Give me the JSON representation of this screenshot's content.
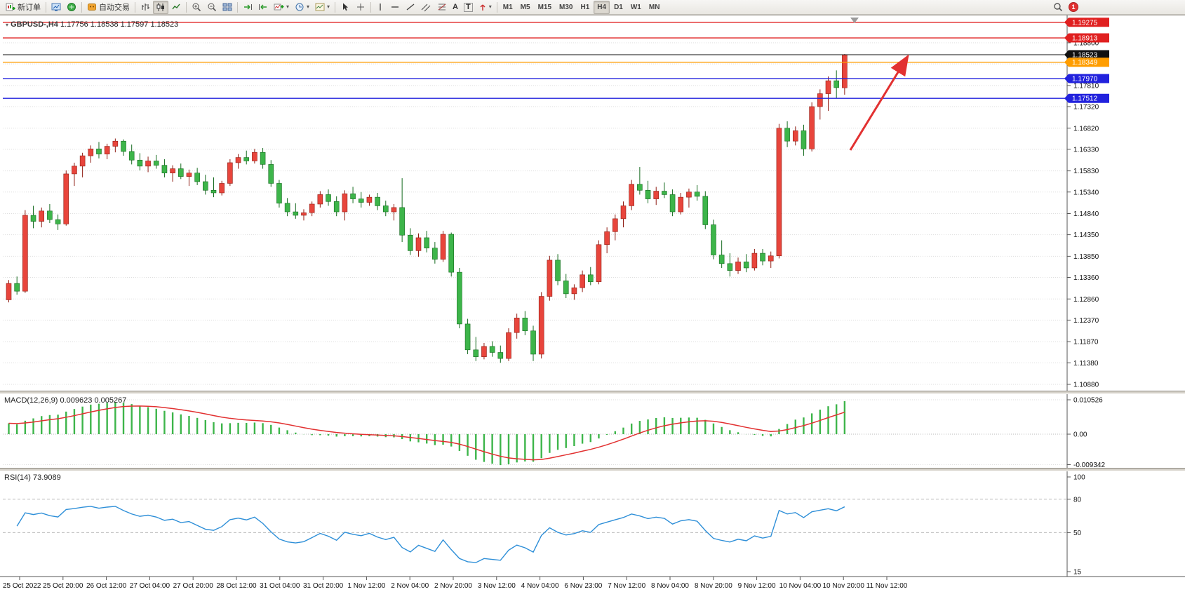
{
  "toolbar": {
    "new_order": "新订单",
    "autotrade": "自动交易",
    "timeframes": [
      "M1",
      "M5",
      "M15",
      "M30",
      "H1",
      "H4",
      "D1",
      "W1",
      "MN"
    ],
    "active_timeframe": "H4",
    "notification_count": "1"
  },
  "icons": {
    "caret_down": "▾",
    "text_tool": "A",
    "label_tool": "T"
  },
  "chart_header": {
    "symbol": "GBPUSD-,H4",
    "ohlc": "1.17756 1.18538 1.17597 1.18523"
  },
  "macd_header": {
    "name": "MACD(12,26,9)",
    "value_main": "0.009623",
    "value_signal": "0.005267"
  },
  "rsi_header": {
    "name": "RSI(14)",
    "value": "73.9089"
  },
  "chart_data": {
    "type": "candlestick",
    "symbol": "GBPUSD",
    "timeframe": "H4",
    "current_ohlc": {
      "open": 1.17756,
      "high": 1.18538,
      "low": 1.17597,
      "close": 1.18523
    },
    "colors": {
      "up": "#e8453c",
      "down": "#3db54a",
      "macd_hist": "#3db54a",
      "macd_signal": "#e23131",
      "rsi_line": "#2e8fd8"
    },
    "price_axis_ticks": [
      "1.18800",
      "1.18310",
      "1.17810",
      "1.17320",
      "1.16820",
      "1.16330",
      "1.15830",
      "1.15340",
      "1.14840",
      "1.14350",
      "1.13850",
      "1.13360",
      "1.12860",
      "1.12370",
      "1.11870",
      "1.11380",
      "1.10880"
    ],
    "time_axis_labels": [
      "25 Oct 2022",
      "25 Oct 20:00",
      "26 Oct 12:00",
      "27 Oct 04:00",
      "27 Oct 20:00",
      "28 Oct 12:00",
      "31 Oct 04:00",
      "31 Oct 20:00",
      "1 Nov 12:00",
      "2 Nov 04:00",
      "2 Nov 20:00",
      "3 Nov 12:00",
      "4 Nov 04:00",
      "6 Nov 23:00",
      "7 Nov 12:00",
      "8 Nov 04:00",
      "8 Nov 20:00",
      "9 Nov 12:00",
      "10 Nov 04:00",
      "10 Nov 20:00",
      "11 Nov 12:00"
    ],
    "hlines": [
      {
        "price": 1.19275,
        "color": "#e02020",
        "label": "1.19275",
        "type": "resistance"
      },
      {
        "price": 1.18913,
        "color": "#e02020",
        "label": "1.18913",
        "type": "resistance"
      },
      {
        "price": 1.18523,
        "color": "#111111",
        "label": "1.18523",
        "type": "current-price"
      },
      {
        "price": 1.18349,
        "color": "#ff9d00",
        "label": "1.18349",
        "type": "level"
      },
      {
        "price": 1.1797,
        "color": "#2222dd",
        "label": "1.17970",
        "type": "support"
      },
      {
        "price": 1.17512,
        "color": "#2222dd",
        "label": "1.17512",
        "type": "support"
      }
    ],
    "arrow_annotation": {
      "color": "#e23131"
    },
    "macd": {
      "name": "MACD(12,26,9)",
      "params": [
        12,
        26,
        9
      ],
      "value_main": 0.009623,
      "value_signal": 0.005267,
      "axis_labels": [
        "0.010526",
        "0.00",
        "-0.009342"
      ],
      "axis_values": [
        0.010526,
        0,
        -0.009342
      ]
    },
    "rsi": {
      "name": "RSI(14)",
      "period": 14,
      "value": 73.9089,
      "axis_labels": [
        "100",
        "80",
        "50",
        "15"
      ],
      "levels": [
        80,
        50
      ]
    },
    "candles": [
      [
        1.1284,
        1.133,
        1.1278,
        1.1322
      ],
      [
        1.1322,
        1.1338,
        1.1296,
        1.1304
      ],
      [
        1.1304,
        1.1492,
        1.13,
        1.148
      ],
      [
        1.148,
        1.1502,
        1.145,
        1.1466
      ],
      [
        1.1466,
        1.1498,
        1.1452,
        1.149
      ],
      [
        1.149,
        1.1506,
        1.1462,
        1.147
      ],
      [
        1.147,
        1.1482,
        1.1446,
        1.146
      ],
      [
        1.146,
        1.1584,
        1.1456,
        1.1576
      ],
      [
        1.1576,
        1.1602,
        1.1548,
        1.1594
      ],
      [
        1.1594,
        1.1625,
        1.1568,
        1.1618
      ],
      [
        1.1618,
        1.1642,
        1.1602,
        1.1634
      ],
      [
        1.1634,
        1.165,
        1.1612,
        1.1622
      ],
      [
        1.1622,
        1.1646,
        1.161,
        1.164
      ],
      [
        1.164,
        1.1658,
        1.1626,
        1.1652
      ],
      [
        1.1652,
        1.1656,
        1.1618,
        1.1628
      ],
      [
        1.1628,
        1.1644,
        1.1598,
        1.1608
      ],
      [
        1.1608,
        1.1624,
        1.1584,
        1.1594
      ],
      [
        1.1594,
        1.1616,
        1.158,
        1.1606
      ],
      [
        1.1606,
        1.162,
        1.1588,
        1.1596
      ],
      [
        1.1596,
        1.161,
        1.1568,
        1.1578
      ],
      [
        1.1578,
        1.1596,
        1.1558,
        1.1588
      ],
      [
        1.1588,
        1.16,
        1.1564,
        1.157
      ],
      [
        1.157,
        1.1586,
        1.1548,
        1.1578
      ],
      [
        1.1578,
        1.159,
        1.155,
        1.1558
      ],
      [
        1.1558,
        1.1574,
        1.1528,
        1.1538
      ],
      [
        1.1538,
        1.1568,
        1.1522,
        1.1532
      ],
      [
        1.1532,
        1.156,
        1.1526,
        1.1554
      ],
      [
        1.1554,
        1.161,
        1.1548,
        1.1602
      ],
      [
        1.1602,
        1.1622,
        1.1588,
        1.1614
      ],
      [
        1.1614,
        1.163,
        1.1598,
        1.1606
      ],
      [
        1.1606,
        1.1634,
        1.16,
        1.1626
      ],
      [
        1.1626,
        1.1636,
        1.1588,
        1.1598
      ],
      [
        1.1598,
        1.1608,
        1.1546,
        1.1554
      ],
      [
        1.1554,
        1.1562,
        1.1498,
        1.1508
      ],
      [
        1.1508,
        1.152,
        1.1478,
        1.1488
      ],
      [
        1.1488,
        1.1508,
        1.1472,
        1.148
      ],
      [
        1.148,
        1.1494,
        1.1468,
        1.1486
      ],
      [
        1.1486,
        1.1512,
        1.1478,
        1.1506
      ],
      [
        1.1506,
        1.1536,
        1.1498,
        1.1528
      ],
      [
        1.1528,
        1.154,
        1.1502,
        1.1512
      ],
      [
        1.1512,
        1.1524,
        1.1478,
        1.1488
      ],
      [
        1.1488,
        1.1538,
        1.1468,
        1.153
      ],
      [
        1.153,
        1.1546,
        1.1508,
        1.1518
      ],
      [
        1.1518,
        1.1534,
        1.1498,
        1.151
      ],
      [
        1.151,
        1.1528,
        1.1502,
        1.1522
      ],
      [
        1.1522,
        1.1532,
        1.1492,
        1.1502
      ],
      [
        1.1502,
        1.1514,
        1.1478,
        1.1488
      ],
      [
        1.1488,
        1.1506,
        1.1468,
        1.1498
      ],
      [
        1.1498,
        1.1566,
        1.1418,
        1.1434
      ],
      [
        1.1434,
        1.145,
        1.1388,
        1.1398
      ],
      [
        1.1398,
        1.1438,
        1.1384,
        1.1428
      ],
      [
        1.1428,
        1.1444,
        1.1394,
        1.1404
      ],
      [
        1.1404,
        1.1418,
        1.1368,
        1.1378
      ],
      [
        1.1378,
        1.1444,
        1.1372,
        1.1436
      ],
      [
        1.1436,
        1.144,
        1.1338,
        1.1348
      ],
      [
        1.1348,
        1.1358,
        1.1218,
        1.1228
      ],
      [
        1.1228,
        1.124,
        1.1158,
        1.1168
      ],
      [
        1.1168,
        1.1198,
        1.1142,
        1.1152
      ],
      [
        1.1152,
        1.1184,
        1.1146,
        1.1176
      ],
      [
        1.1176,
        1.1188,
        1.1152,
        1.1162
      ],
      [
        1.1162,
        1.1178,
        1.1138,
        1.1148
      ],
      [
        1.1148,
        1.1218,
        1.1142,
        1.1208
      ],
      [
        1.1208,
        1.1252,
        1.1194,
        1.1242
      ],
      [
        1.1242,
        1.1258,
        1.1202,
        1.1212
      ],
      [
        1.1212,
        1.1224,
        1.1142,
        1.1158
      ],
      [
        1.1158,
        1.1302,
        1.1148,
        1.1292
      ],
      [
        1.1292,
        1.1386,
        1.1282,
        1.1376
      ],
      [
        1.1376,
        1.139,
        1.1318,
        1.1328
      ],
      [
        1.1328,
        1.1344,
        1.1288,
        1.1298
      ],
      [
        1.1298,
        1.132,
        1.1284,
        1.1312
      ],
      [
        1.1312,
        1.1352,
        1.1302,
        1.1342
      ],
      [
        1.1342,
        1.136,
        1.1318,
        1.1326
      ],
      [
        1.1326,
        1.1422,
        1.132,
        1.1412
      ],
      [
        1.1412,
        1.1452,
        1.1392,
        1.1442
      ],
      [
        1.1442,
        1.1482,
        1.1422,
        1.1472
      ],
      [
        1.1472,
        1.1512,
        1.1452,
        1.1502
      ],
      [
        1.1502,
        1.1562,
        1.1492,
        1.1552
      ],
      [
        1.1552,
        1.1592,
        1.1528,
        1.1538
      ],
      [
        1.1538,
        1.156,
        1.1508,
        1.1518
      ],
      [
        1.1518,
        1.1546,
        1.1504,
        1.1536
      ],
      [
        1.1536,
        1.1556,
        1.152,
        1.1528
      ],
      [
        1.1528,
        1.154,
        1.1478,
        1.1488
      ],
      [
        1.1488,
        1.1532,
        1.1482,
        1.1522
      ],
      [
        1.1522,
        1.1542,
        1.1498,
        1.1534
      ],
      [
        1.1534,
        1.155,
        1.1514,
        1.1524
      ],
      [
        1.1524,
        1.1536,
        1.1448,
        1.1458
      ],
      [
        1.1458,
        1.147,
        1.1378,
        1.1388
      ],
      [
        1.1388,
        1.1422,
        1.1358,
        1.1368
      ],
      [
        1.1368,
        1.1392,
        1.1338,
        1.1352
      ],
      [
        1.1352,
        1.1382,
        1.1344,
        1.1372
      ],
      [
        1.1372,
        1.139,
        1.1348,
        1.1358
      ],
      [
        1.1358,
        1.1402,
        1.1352,
        1.1392
      ],
      [
        1.1392,
        1.1402,
        1.1364,
        1.1374
      ],
      [
        1.1374,
        1.1396,
        1.1358,
        1.1386
      ],
      [
        1.1386,
        1.1692,
        1.138,
        1.1682
      ],
      [
        1.1682,
        1.1698,
        1.1638,
        1.1652
      ],
      [
        1.1652,
        1.1686,
        1.1642,
        1.1676
      ],
      [
        1.1676,
        1.169,
        1.1618,
        1.1634
      ],
      [
        1.1634,
        1.1742,
        1.1628,
        1.1732
      ],
      [
        1.1732,
        1.1772,
        1.1702,
        1.1762
      ],
      [
        1.1762,
        1.1802,
        1.1722,
        1.1792
      ],
      [
        1.1792,
        1.1816,
        1.1752,
        1.1776
      ],
      [
        1.17756,
        1.18538,
        1.17597,
        1.18523
      ]
    ]
  }
}
